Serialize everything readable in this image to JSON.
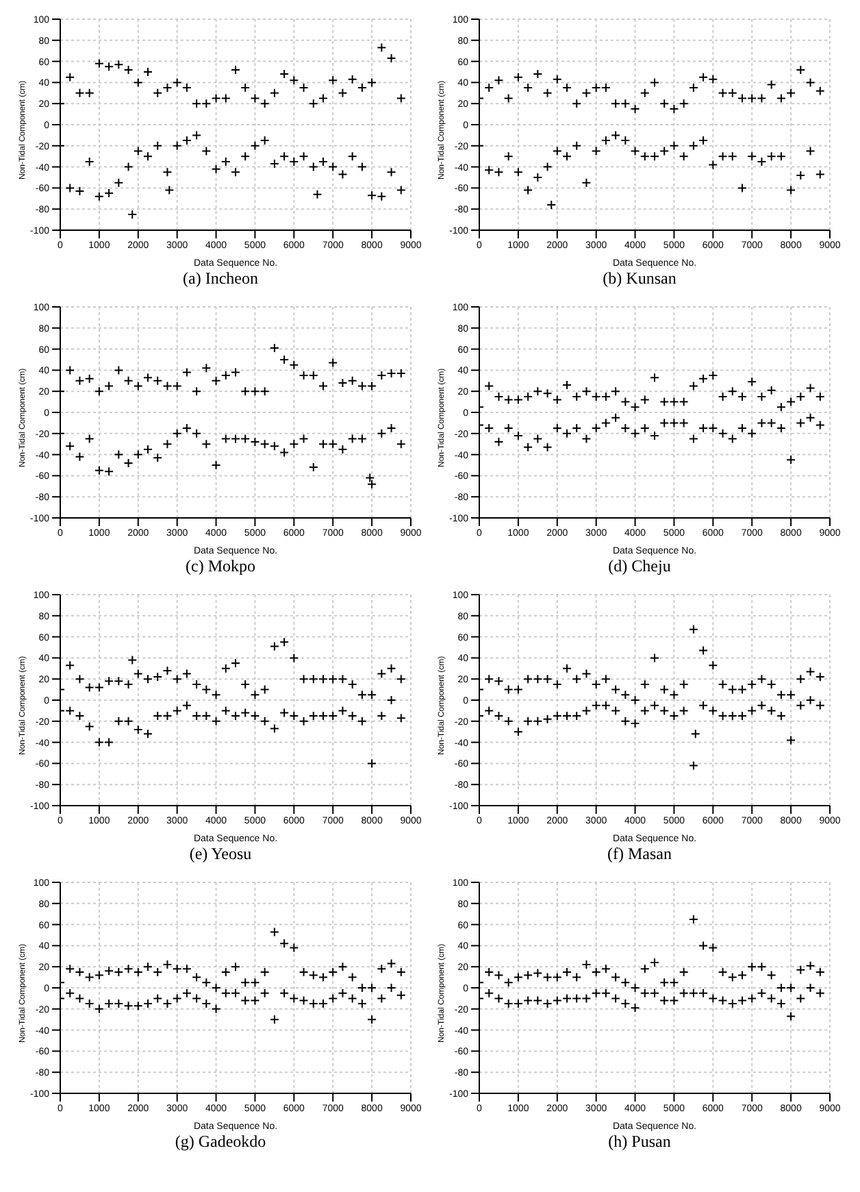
{
  "chart_data": [
    {
      "type": "scatter",
      "title": "(a)  Incheon",
      "xlabel": "Data Sequence No.",
      "ylabel": "Non-Tidal Component (cm)",
      "xlim": [
        0,
        9000
      ],
      "xticks": [
        0,
        1000,
        2000,
        3000,
        4000,
        5000,
        6000,
        7000,
        8000,
        9000
      ],
      "ylim": [
        -100,
        100
      ],
      "yticks": [
        -100,
        -80,
        -60,
        -40,
        -20,
        0,
        20,
        40,
        60,
        80,
        100
      ],
      "grid": true,
      "marker": "cross",
      "series": [
        {
          "color": "#000000",
          "x": [
            0,
            0,
            250,
            250,
            500,
            500,
            750,
            750,
            1000,
            1000,
            1250,
            1250,
            1500,
            1500,
            1750,
            1750,
            2000,
            2000,
            2250,
            2250,
            2500,
            2500,
            2750,
            2750,
            3000,
            3000,
            3250,
            3250,
            3500,
            3500,
            3750,
            3750,
            4000,
            4000,
            4250,
            4250,
            4500,
            4500,
            4750,
            4750,
            5000,
            5000,
            5250,
            5250,
            5500,
            5500,
            5750,
            5750,
            6000,
            6000,
            6250,
            6250,
            6500,
            6500,
            6750,
            6750,
            7000,
            7000,
            7250,
            7250,
            7500,
            7500,
            7750,
            7750,
            8000,
            8000,
            8250,
            8250,
            8500,
            8500,
            8750,
            8750,
            1850,
            2800,
            6600
          ],
          "values": [
            20,
            -20,
            45,
            -60,
            30,
            -63,
            30,
            -35,
            58,
            -68,
            55,
            -65,
            57,
            -55,
            52,
            -40,
            40,
            -25,
            50,
            -30,
            30,
            -20,
            35,
            -45,
            40,
            -20,
            35,
            -15,
            20,
            -10,
            20,
            -25,
            25,
            -42,
            25,
            -35,
            52,
            -45,
            35,
            -30,
            25,
            -20,
            20,
            -15,
            30,
            -37,
            48,
            -30,
            42,
            -35,
            35,
            -30,
            20,
            -40,
            25,
            -35,
            42,
            -40,
            30,
            -47,
            43,
            -30,
            35,
            -40,
            40,
            -67,
            73,
            -68,
            63,
            -45,
            25,
            -62,
            -85,
            -62,
            -66
          ]
        }
      ]
    },
    {
      "type": "scatter",
      "title": "(b)  Kunsan",
      "xlabel": "Data Sequence No.",
      "ylabel": "Non-Tidal Component (cm)",
      "xlim": [
        0,
        9000
      ],
      "xticks": [
        0,
        1000,
        2000,
        3000,
        4000,
        5000,
        6000,
        7000,
        8000,
        9000
      ],
      "ylim": [
        -100,
        100
      ],
      "yticks": [
        -100,
        -80,
        -60,
        -40,
        -20,
        0,
        20,
        40,
        60,
        80,
        100
      ],
      "grid": true,
      "marker": "cross",
      "series": [
        {
          "color": "#000000",
          "x": [
            0,
            0,
            250,
            250,
            500,
            500,
            750,
            750,
            1000,
            1000,
            1250,
            1250,
            1500,
            1500,
            1750,
            1750,
            2000,
            2000,
            2250,
            2250,
            2500,
            2500,
            2750,
            2750,
            3000,
            3000,
            3250,
            3250,
            3500,
            3500,
            3750,
            3750,
            4000,
            4000,
            4250,
            4250,
            4500,
            4500,
            4750,
            4750,
            5000,
            5000,
            5250,
            5250,
            5500,
            5500,
            5750,
            5750,
            6000,
            6000,
            6250,
            6250,
            6500,
            6500,
            6750,
            6750,
            7000,
            7000,
            7250,
            7250,
            7500,
            7500,
            7750,
            7750,
            8000,
            8000,
            8250,
            8250,
            8500,
            8500,
            8750,
            8750,
            1850
          ],
          "values": [
            25,
            -20,
            35,
            -43,
            42,
            -45,
            25,
            -30,
            45,
            -45,
            35,
            -62,
            48,
            -50,
            30,
            -40,
            43,
            -25,
            35,
            -30,
            20,
            -20,
            30,
            -55,
            35,
            -25,
            35,
            -15,
            20,
            -10,
            20,
            -15,
            15,
            -25,
            30,
            -30,
            40,
            -30,
            20,
            -25,
            15,
            -20,
            20,
            -30,
            35,
            -20,
            45,
            -15,
            43,
            -38,
            30,
            -30,
            30,
            -30,
            25,
            -60,
            25,
            -30,
            25,
            -35,
            38,
            -30,
            25,
            -30,
            30,
            -62,
            52,
            -48,
            40,
            -25,
            32,
            -47,
            -76
          ]
        }
      ]
    },
    {
      "type": "scatter",
      "title": "(c)  Mokpo",
      "xlabel": "Data Sequence No.",
      "ylabel": "Non-Tidal Component (cm)",
      "xlim": [
        0,
        9000
      ],
      "xticks": [
        0,
        1000,
        2000,
        3000,
        4000,
        5000,
        6000,
        7000,
        8000,
        9000
      ],
      "ylim": [
        -100,
        100
      ],
      "yticks": [
        -100,
        -80,
        -60,
        -40,
        -20,
        0,
        20,
        40,
        60,
        80,
        100
      ],
      "grid": true,
      "marker": "cross",
      "series": [
        {
          "color": "#000000",
          "x": [
            0,
            0,
            250,
            250,
            500,
            500,
            750,
            750,
            1000,
            1000,
            1250,
            1250,
            1500,
            1500,
            1750,
            1750,
            2000,
            2000,
            2250,
            2250,
            2500,
            2500,
            2750,
            2750,
            3000,
            3000,
            3250,
            3250,
            3500,
            3500,
            3750,
            3750,
            4000,
            4000,
            4250,
            4250,
            4500,
            4500,
            4750,
            4750,
            5000,
            5000,
            5250,
            5250,
            5500,
            5500,
            5750,
            5750,
            6000,
            6000,
            6250,
            6250,
            6500,
            6500,
            6750,
            6750,
            7000,
            7000,
            7250,
            7250,
            7500,
            7500,
            7750,
            7750,
            8000,
            8000,
            8250,
            8250,
            8500,
            8500,
            8750,
            8750,
            7950
          ],
          "values": [
            20,
            -20,
            40,
            -32,
            30,
            -42,
            32,
            -25,
            20,
            -55,
            25,
            -56,
            40,
            -40,
            30,
            -48,
            25,
            -40,
            33,
            -35,
            30,
            -43,
            25,
            -30,
            25,
            -20,
            38,
            -15,
            20,
            -20,
            42,
            -30,
            30,
            -50,
            35,
            -25,
            38,
            -25,
            20,
            -25,
            20,
            -28,
            20,
            -30,
            61,
            -32,
            50,
            -38,
            45,
            -30,
            35,
            -25,
            35,
            -52,
            25,
            -30,
            47,
            -30,
            28,
            -35,
            30,
            -25,
            25,
            -25,
            25,
            -68,
            35,
            -20,
            37,
            -15,
            37,
            -30,
            -62
          ]
        }
      ]
    },
    {
      "type": "scatter",
      "title": "(d)  Cheju",
      "xlabel": "Data Sequence No.",
      "ylabel": "Non-Tidal Component (cm)",
      "xlim": [
        0,
        9000
      ],
      "xticks": [
        0,
        1000,
        2000,
        3000,
        4000,
        5000,
        6000,
        7000,
        8000,
        9000
      ],
      "ylim": [
        -100,
        100
      ],
      "yticks": [
        -100,
        -80,
        -60,
        -40,
        -20,
        0,
        20,
        40,
        60,
        80,
        100
      ],
      "grid": true,
      "marker": "cross",
      "series": [
        {
          "color": "#000000",
          "x": [
            0,
            0,
            250,
            250,
            500,
            500,
            750,
            750,
            1000,
            1000,
            1250,
            1250,
            1500,
            1500,
            1750,
            1750,
            2000,
            2000,
            2250,
            2250,
            2500,
            2500,
            2750,
            2750,
            3000,
            3000,
            3250,
            3250,
            3500,
            3500,
            3750,
            3750,
            4000,
            4000,
            4250,
            4250,
            4500,
            4500,
            4750,
            4750,
            5000,
            5000,
            5250,
            5250,
            5500,
            5500,
            5750,
            5750,
            6000,
            6000,
            6250,
            6250,
            6500,
            6500,
            6750,
            6750,
            7000,
            7000,
            7250,
            7250,
            7500,
            7500,
            7750,
            7750,
            8000,
            8000,
            8250,
            8250,
            8500,
            8500,
            8750,
            8750
          ],
          "values": [
            5,
            -12,
            25,
            -15,
            15,
            -28,
            12,
            -15,
            12,
            -22,
            15,
            -33,
            20,
            -25,
            18,
            -33,
            12,
            -15,
            26,
            -20,
            15,
            -15,
            20,
            -25,
            15,
            -15,
            15,
            -10,
            20,
            -5,
            10,
            -15,
            5,
            -20,
            12,
            -15,
            33,
            -22,
            10,
            -10,
            10,
            -10,
            10,
            -10,
            25,
            -25,
            32,
            -15,
            35,
            -15,
            15,
            -20,
            20,
            -25,
            15,
            -15,
            29,
            -20,
            15,
            -10,
            21,
            -10,
            5,
            -15,
            10,
            -45,
            15,
            -10,
            23,
            -5,
            15,
            -12
          ]
        }
      ]
    },
    {
      "type": "scatter",
      "title": "(e)  Yeosu",
      "xlabel": "Data Sequence No.",
      "ylabel": "Non-Tidal Component (cm)",
      "xlim": [
        0,
        9000
      ],
      "xticks": [
        0,
        1000,
        2000,
        3000,
        4000,
        5000,
        6000,
        7000,
        8000,
        9000
      ],
      "ylim": [
        -100,
        100
      ],
      "yticks": [
        -100,
        -80,
        -60,
        -40,
        -20,
        0,
        20,
        40,
        60,
        80,
        100
      ],
      "grid": true,
      "marker": "cross",
      "series": [
        {
          "color": "#000000",
          "x": [
            0,
            0,
            250,
            250,
            500,
            500,
            750,
            750,
            1000,
            1000,
            1250,
            1250,
            1500,
            1500,
            1750,
            1750,
            2000,
            2000,
            2250,
            2250,
            2500,
            2500,
            2750,
            2750,
            3000,
            3000,
            3250,
            3250,
            3500,
            3500,
            3750,
            3750,
            4000,
            4000,
            4250,
            4250,
            4500,
            4500,
            4750,
            4750,
            5000,
            5000,
            5250,
            5250,
            5500,
            5500,
            5750,
            5750,
            6000,
            6000,
            6250,
            6250,
            6500,
            6500,
            6750,
            6750,
            7000,
            7000,
            7250,
            7250,
            7500,
            7500,
            7750,
            7750,
            8000,
            8000,
            8250,
            8250,
            8500,
            8500,
            8750,
            8750,
            1850
          ],
          "values": [
            10,
            -10,
            33,
            -10,
            20,
            -15,
            12,
            -25,
            12,
            -40,
            18,
            -40,
            18,
            -20,
            15,
            -20,
            25,
            -28,
            20,
            -32,
            22,
            -15,
            28,
            -15,
            20,
            -10,
            25,
            -5,
            15,
            -15,
            10,
            -15,
            5,
            -20,
            30,
            -10,
            35,
            -15,
            15,
            -12,
            5,
            -15,
            10,
            -20,
            51,
            -27,
            55,
            -12,
            40,
            -15,
            20,
            -20,
            20,
            -15,
            20,
            -15,
            20,
            -15,
            20,
            -10,
            15,
            -15,
            5,
            -20,
            5,
            -60,
            25,
            -15,
            30,
            0,
            20,
            -17,
            38
          ]
        }
      ]
    },
    {
      "type": "scatter",
      "title": "(f)  Masan",
      "xlabel": "Data Sequence No.",
      "ylabel": "Non-Tidal Component (cm)",
      "xlim": [
        0,
        9000
      ],
      "xticks": [
        0,
        1000,
        2000,
        3000,
        4000,
        5000,
        6000,
        7000,
        8000,
        9000
      ],
      "ylim": [
        -100,
        100
      ],
      "yticks": [
        -100,
        -80,
        -60,
        -40,
        -20,
        0,
        20,
        40,
        60,
        80,
        100
      ],
      "grid": true,
      "marker": "cross",
      "series": [
        {
          "color": "#000000",
          "x": [
            0,
            0,
            250,
            250,
            500,
            500,
            750,
            750,
            1000,
            1000,
            1250,
            1250,
            1500,
            1500,
            1750,
            1750,
            2000,
            2000,
            2250,
            2250,
            2500,
            2500,
            2750,
            2750,
            3000,
            3000,
            3250,
            3250,
            3500,
            3500,
            3750,
            3750,
            4000,
            4000,
            4250,
            4250,
            4500,
            4500,
            4750,
            4750,
            5000,
            5000,
            5250,
            5250,
            5500,
            5500,
            5750,
            5750,
            6000,
            6000,
            6250,
            6250,
            6500,
            6500,
            6750,
            6750,
            7000,
            7000,
            7250,
            7250,
            7500,
            7500,
            7750,
            7750,
            8000,
            8000,
            8250,
            8250,
            8500,
            8500,
            8750,
            8750,
            5550
          ],
          "values": [
            10,
            -15,
            20,
            -10,
            18,
            -15,
            10,
            -20,
            10,
            -30,
            20,
            -20,
            20,
            -20,
            20,
            -18,
            15,
            -15,
            30,
            -15,
            20,
            -15,
            25,
            -10,
            15,
            -5,
            20,
            -5,
            10,
            -10,
            5,
            -20,
            0,
            -22,
            15,
            -10,
            40,
            -5,
            10,
            -10,
            5,
            -15,
            15,
            -10,
            67,
            -62,
            47,
            -5,
            33,
            -10,
            15,
            -15,
            10,
            -15,
            10,
            -15,
            15,
            -10,
            20,
            -5,
            15,
            -10,
            5,
            -15,
            5,
            -38,
            20,
            -5,
            27,
            0,
            22,
            -5,
            -32
          ]
        }
      ]
    },
    {
      "type": "scatter",
      "title": "(g)  Gadeokdo",
      "xlabel": "Data Sequence No.",
      "ylabel": "Non-Tidal Component (cm)",
      "xlim": [
        0,
        9000
      ],
      "xticks": [
        0,
        1000,
        2000,
        3000,
        4000,
        5000,
        6000,
        7000,
        8000,
        9000
      ],
      "ylim": [
        -100,
        100
      ],
      "yticks": [
        -100,
        -80,
        -60,
        -40,
        -20,
        0,
        20,
        40,
        60,
        80,
        100
      ],
      "grid": true,
      "marker": "cross",
      "series": [
        {
          "color": "#000000",
          "x": [
            0,
            0,
            250,
            250,
            500,
            500,
            750,
            750,
            1000,
            1000,
            1250,
            1250,
            1500,
            1500,
            1750,
            1750,
            2000,
            2000,
            2250,
            2250,
            2500,
            2500,
            2750,
            2750,
            3000,
            3000,
            3250,
            3250,
            3500,
            3500,
            3750,
            3750,
            4000,
            4000,
            4250,
            4250,
            4500,
            4500,
            4750,
            4750,
            5000,
            5000,
            5250,
            5250,
            5500,
            5500,
            5750,
            5750,
            6000,
            6000,
            6250,
            6250,
            6500,
            6500,
            6750,
            6750,
            7000,
            7000,
            7250,
            7250,
            7500,
            7500,
            7750,
            7750,
            8000,
            8000,
            8250,
            8250,
            8500,
            8500,
            8750,
            8750
          ],
          "values": [
            5,
            -10,
            18,
            -5,
            15,
            -10,
            10,
            -15,
            12,
            -20,
            16,
            -15,
            15,
            -15,
            18,
            -17,
            15,
            -17,
            20,
            -15,
            15,
            -10,
            22,
            -15,
            18,
            -10,
            18,
            -5,
            10,
            -10,
            5,
            -15,
            0,
            -20,
            15,
            -5,
            20,
            -5,
            5,
            -12,
            5,
            -12,
            15,
            -5,
            53,
            -30,
            42,
            -5,
            38,
            -10,
            15,
            -12,
            12,
            -15,
            10,
            -15,
            15,
            -10,
            20,
            -5,
            10,
            -10,
            0,
            -15,
            0,
            -30,
            18,
            -10,
            23,
            0,
            15,
            -7
          ]
        }
      ]
    },
    {
      "type": "scatter",
      "title": "(h)  Pusan",
      "xlabel": "Data Sequence No.",
      "ylabel": "Non-Tidal Component (cm)",
      "xlim": [
        0,
        9000
      ],
      "xticks": [
        0,
        1000,
        2000,
        3000,
        4000,
        5000,
        6000,
        7000,
        8000,
        9000
      ],
      "ylim": [
        -100,
        100
      ],
      "yticks": [
        -100,
        -80,
        -60,
        -40,
        -20,
        0,
        20,
        40,
        60,
        80,
        100
      ],
      "grid": true,
      "marker": "cross",
      "series": [
        {
          "color": "#000000",
          "x": [
            0,
            0,
            250,
            250,
            500,
            500,
            750,
            750,
            1000,
            1000,
            1250,
            1250,
            1500,
            1500,
            1750,
            1750,
            2000,
            2000,
            2250,
            2250,
            2500,
            2500,
            2750,
            2750,
            3000,
            3000,
            3250,
            3250,
            3500,
            3500,
            3750,
            3750,
            4000,
            4000,
            4250,
            4250,
            4500,
            4500,
            4750,
            4750,
            5000,
            5000,
            5250,
            5250,
            5500,
            5500,
            5750,
            5750,
            6000,
            6000,
            6250,
            6250,
            6500,
            6500,
            6750,
            6750,
            7000,
            7000,
            7250,
            7250,
            7500,
            7500,
            7750,
            7750,
            8000,
            8000,
            8250,
            8250,
            8500,
            8500,
            8750,
            8750
          ],
          "values": [
            5,
            -10,
            15,
            -5,
            12,
            -10,
            5,
            -15,
            10,
            -15,
            12,
            -12,
            14,
            -12,
            10,
            -15,
            10,
            -12,
            15,
            -10,
            10,
            -10,
            22,
            -10,
            15,
            -5,
            18,
            -5,
            10,
            -10,
            5,
            -15,
            0,
            -19,
            18,
            -5,
            24,
            -5,
            5,
            -12,
            5,
            -12,
            15,
            -5,
            65,
            -5,
            40,
            -5,
            38,
            -10,
            15,
            -12,
            10,
            -15,
            12,
            -12,
            20,
            -10,
            20,
            -5,
            12,
            -10,
            0,
            -15,
            0,
            -27,
            17,
            -10,
            21,
            0,
            15,
            -5
          ]
        }
      ]
    }
  ]
}
